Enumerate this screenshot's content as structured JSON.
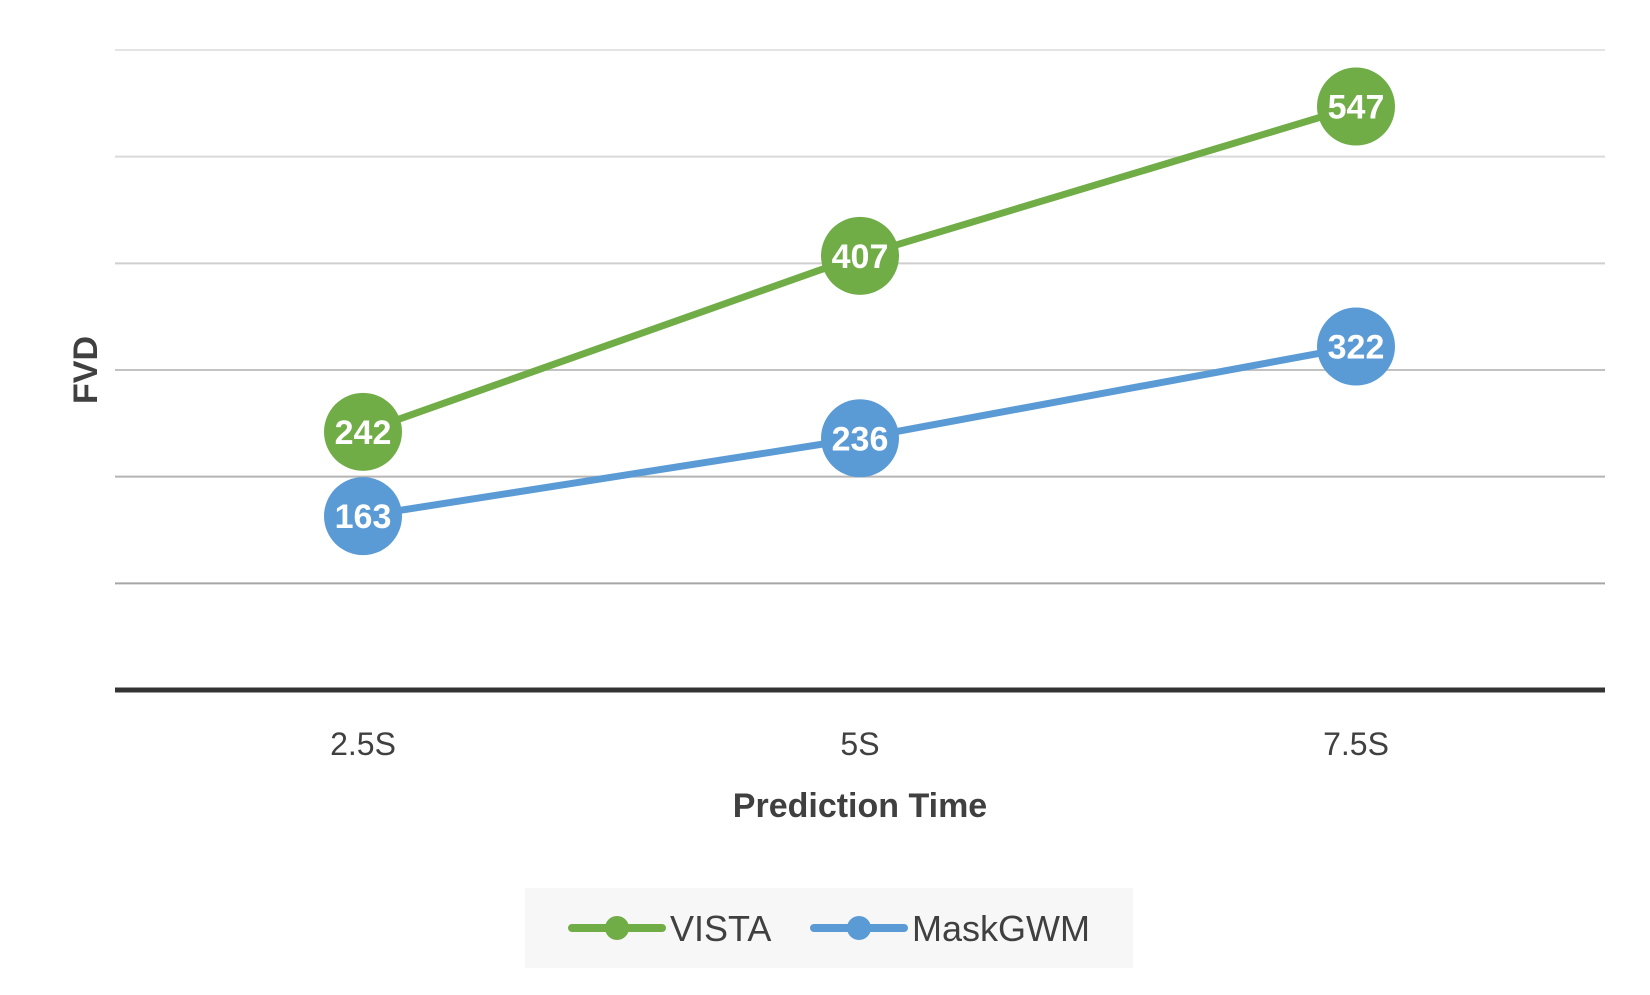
{
  "chart_data": {
    "type": "line",
    "title": "",
    "xlabel": "Prediction Time",
    "ylabel": "FVD",
    "categories": [
      "2.5S",
      "5S",
      "7.5S"
    ],
    "series": [
      {
        "name": "VISTA",
        "values": [
          242,
          407,
          547
        ],
        "color": "#70AD47"
      },
      {
        "name": "MaskGWM",
        "values": [
          163,
          236,
          322
        ],
        "color": "#5B9BD5"
      }
    ],
    "ylim": [
      0,
      600
    ],
    "y_tick_labels_shown": false,
    "grid": true,
    "data_labels": true,
    "legend_position": "bottom"
  }
}
